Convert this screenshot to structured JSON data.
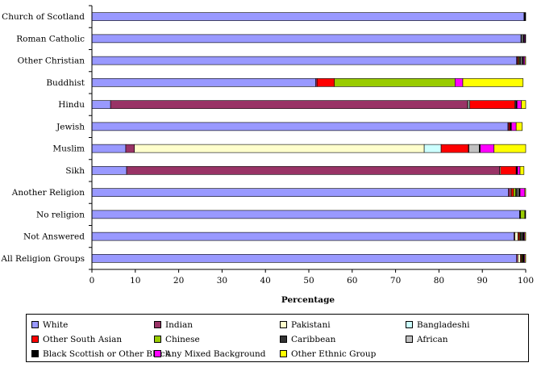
{
  "chart_data": {
    "type": "bar",
    "orientation": "horizontal",
    "stacked": true,
    "xlabel": "Percentage",
    "ylabel": "",
    "xlim": [
      0,
      100
    ],
    "xticks": [
      "0",
      "10",
      "20",
      "30",
      "40",
      "50",
      "60",
      "70",
      "80",
      "90",
      "100"
    ],
    "legend_position": "bottom",
    "grid": false,
    "categories": [
      "Church of Scotland",
      "Roman Catholic",
      "Other Christian",
      "Buddhist",
      "Hindu",
      "Jewish",
      "Muslim",
      "Sikh",
      "Another Religion",
      "No religion",
      "Not Answered",
      "All Religion Groups"
    ],
    "series": [
      {
        "name": "White",
        "color": "#9999ff",
        "values": [
          99.6,
          98.9,
          97.9,
          51.6,
          4.3,
          95.9,
          7.8,
          8.0,
          96.0,
          98.6,
          97.3,
          97.9
        ]
      },
      {
        "name": "Indian",
        "color": "#993366",
        "values": [
          0.0,
          0.0,
          0.2,
          0.3,
          82.3,
          0.2,
          2.0,
          86.0,
          0.5,
          0.1,
          0.2,
          0.3
        ]
      },
      {
        "name": "Pakistani",
        "color": "#ffffcc",
        "values": [
          0.0,
          0.0,
          0.0,
          0.0,
          0.2,
          0.0,
          66.8,
          0.2,
          0.2,
          0.0,
          0.7,
          0.6
        ]
      },
      {
        "name": "Bangladeshi",
        "color": "#ccffff",
        "values": [
          0.0,
          0.0,
          0.0,
          0.0,
          0.3,
          0.0,
          3.9,
          0.0,
          0.0,
          0.0,
          0.1,
          0.0
        ]
      },
      {
        "name": "Other South Asian",
        "color": "#ff0000",
        "values": [
          0.0,
          0.0,
          0.2,
          4.0,
          10.4,
          0.3,
          6.3,
          3.6,
          0.5,
          0.1,
          0.3,
          0.2
        ]
      },
      {
        "name": "Chinese",
        "color": "#99cc00",
        "values": [
          0.0,
          0.0,
          0.2,
          27.8,
          0.0,
          0.0,
          0.0,
          0.0,
          0.5,
          1.0,
          0.2,
          0.2
        ]
      },
      {
        "name": "Caribbean",
        "color": "#333333",
        "values": [
          0.1,
          0.2,
          0.4,
          0.0,
          0.0,
          0.0,
          0.1,
          0.0,
          0.4,
          0.0,
          0.3,
          0.1
        ]
      },
      {
        "name": "African",
        "color": "#c0c0c0",
        "values": [
          0.1,
          0.3,
          0.3,
          0.0,
          0.2,
          0.0,
          2.4,
          0.0,
          0.3,
          0.0,
          0.2,
          0.1
        ]
      },
      {
        "name": "Black Scottish or Other Black",
        "color": "#000000",
        "values": [
          0.0,
          0.3,
          0.3,
          0.0,
          0.3,
          0.3,
          0.2,
          0.3,
          0.3,
          0.0,
          0.3,
          0.2
        ]
      },
      {
        "name": "Any Mixed Background",
        "color": "#ff00ff",
        "values": [
          0.1,
          0.2,
          0.3,
          1.8,
          1.0,
          1.1,
          3.2,
          0.6,
          1.1,
          0.1,
          0.2,
          0.2
        ]
      },
      {
        "name": "Other Ethnic Group",
        "color": "#ffff00",
        "values": [
          0.1,
          0.1,
          0.2,
          13.9,
          1.0,
          1.4,
          7.3,
          0.9,
          0.2,
          0.1,
          0.2,
          0.2
        ]
      }
    ]
  }
}
